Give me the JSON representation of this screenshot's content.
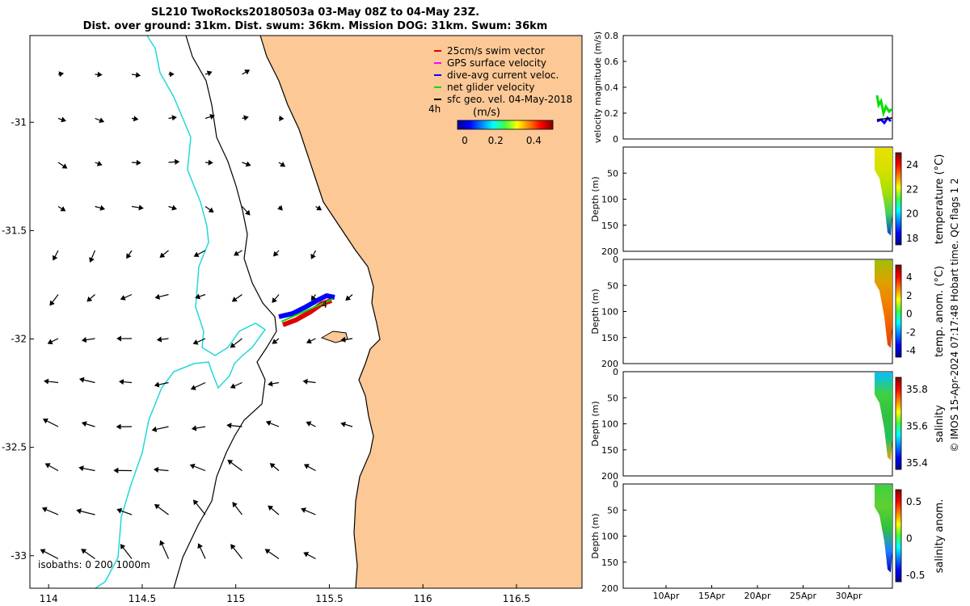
{
  "title_line1": "SL210 TwoRocks20180503a 03-May 08Z to 04-May 23Z.",
  "title_line2": "Dist. over ground: 31km. Dist. swum: 36km. Mission DOG: 31km. Swum: 36km",
  "map": {
    "x_ticks": [
      "114",
      "114.5",
      "115",
      "115.5",
      "116",
      "116.5"
    ],
    "y_ticks": [
      "-31",
      "-31.5",
      "-32",
      "-32.5",
      "-33"
    ],
    "legend": [
      {
        "label": "25cm/s swim vector",
        "color": "#e00000"
      },
      {
        "label": "GPS surface velocity",
        "color": "#ff00ff"
      },
      {
        "label": "dive-avg current veloc.",
        "color": "#0000ff"
      },
      {
        "label": "net glider velocity",
        "color": "#00e000"
      },
      {
        "label": "sfc geo. vel. 04-May-2018",
        "color": "#000000"
      }
    ],
    "time_label": "4h",
    "track_label": "4",
    "colorbar_title": "(m/s)",
    "colorbar_ticks": [
      "0",
      "0.2",
      "0.4"
    ],
    "isobaths_text": "isobaths: 0   200  1000m",
    "land_color": "#fbc896",
    "isobath_200_color": "#000000",
    "isobath_1000_color": "#21d8d8"
  },
  "velocity_panel": {
    "ylabel": "velocity magnitude (m/s)",
    "y_ticks": [
      "0",
      "0.2",
      "0.4",
      "0.6",
      "0.8"
    ]
  },
  "profile_panels": [
    {
      "ylabel": "Depth (m)",
      "cbar_label": "temperature (°C)",
      "cbar_ticks": [
        "24",
        "22",
        "20",
        "18"
      ],
      "y_ticks": [
        "50",
        "100",
        "150",
        "200"
      ]
    },
    {
      "ylabel": "Depth (m)",
      "cbar_label": "temp. anom. (°C)",
      "cbar_ticks": [
        "4",
        "2",
        "0",
        "-2",
        "-4"
      ],
      "y_ticks": [
        "0",
        "50",
        "100",
        "150",
        "200"
      ]
    },
    {
      "ylabel": "Depth (m)",
      "cbar_label": "salinity",
      "cbar_ticks": [
        "35.8",
        "35.6",
        "35.4"
      ],
      "y_ticks": [
        "0",
        "50",
        "100",
        "150",
        "200"
      ]
    },
    {
      "ylabel": "Depth (m)",
      "cbar_label": "salinity anom.",
      "cbar_ticks": [
        "0.5",
        "0",
        "-0.5"
      ],
      "y_ticks": [
        "0",
        "50",
        "100",
        "150",
        "200"
      ]
    }
  ],
  "time_ticks": [
    "10Apr",
    "15Apr",
    "20Apr",
    "25Apr",
    "30Apr"
  ],
  "footer": "© IMOS 15-Apr-2024 07:17:48 Hobart time. QC flags 1  2",
  "chart_data": {
    "type": "map",
    "xlim": [
      113.9,
      116.85
    ],
    "ylim": [
      -33.15,
      -30.6
    ],
    "glider_track_start": [
      115.22,
      -31.9
    ],
    "glider_track_end": [
      115.52,
      -31.82
    ],
    "velocity_xlim_days": [
      0,
      35
    ],
    "velocity_ylim": [
      0,
      0.8
    ],
    "depth_ylim": [
      200,
      0
    ]
  }
}
